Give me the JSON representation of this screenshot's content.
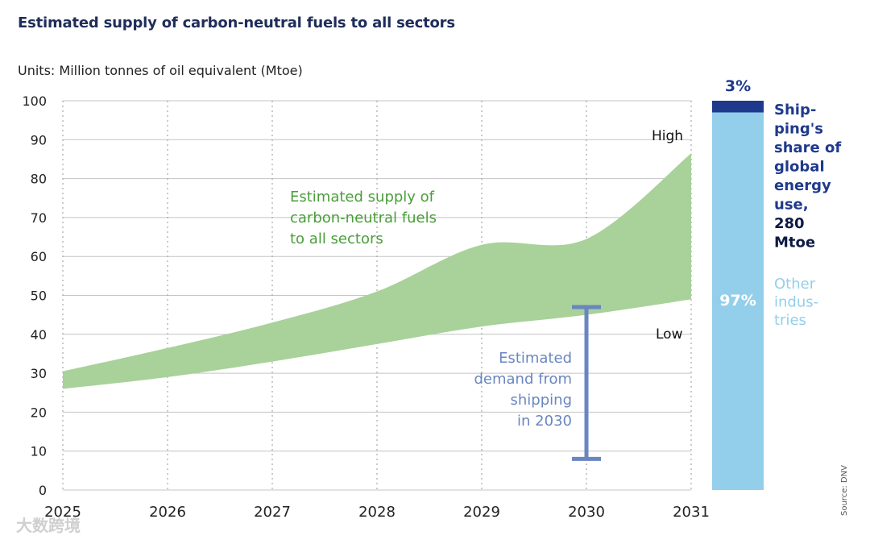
{
  "chart_data": {
    "type": "area",
    "title": "Estimated supply of carbon-neutral fuels to all sectors",
    "units": "Units: Million tonnes of oil equivalent (Mtoe)",
    "x": [
      2025,
      2026,
      2027,
      2028,
      2029,
      2030,
      2031
    ],
    "x_ticks": [
      "2025",
      "2026",
      "2027",
      "2028",
      "2029",
      "2030",
      "2031"
    ],
    "ylim": [
      0,
      100
    ],
    "y_ticks": [
      "0",
      "10",
      "20",
      "30",
      "40",
      "50",
      "60",
      "70",
      "80",
      "90",
      "100"
    ],
    "series": [
      {
        "name": "High",
        "values": [
          30.5,
          36.5,
          43,
          51,
          63,
          64.5,
          86.5
        ]
      },
      {
        "name": "Low",
        "values": [
          26,
          29,
          33,
          37.5,
          42,
          45,
          49
        ]
      }
    ],
    "band_label": [
      "Estimated supply of",
      "carbon-neutral fuels",
      "to all sectors"
    ],
    "high_label": "High",
    "low_label": "Low",
    "demand": {
      "year": 2030,
      "min": 8,
      "max": 47,
      "label": [
        "Estimated",
        "demand from",
        "shipping",
        "in 2030"
      ]
    },
    "share_bar": {
      "shipping_pct": 3,
      "other_pct": 97,
      "shipping_pct_label": "3%",
      "other_pct_label": "97%",
      "shipping_label": [
        "Ship-",
        "ping's",
        "share of",
        "global",
        "energy",
        "use,"
      ],
      "shipping_value": [
        "280",
        "Mtoe"
      ],
      "other_label": [
        "Other",
        "indus-",
        "tries"
      ]
    },
    "colors": {
      "band": "#a9d19a",
      "band_text": "#4a9e3a",
      "demand": "#6a86c0",
      "shipping": "#1f3a8c",
      "other": "#93cfeb",
      "title": "#1f2d5a"
    }
  },
  "source": "Source: DNV",
  "watermark": "大数跨境"
}
